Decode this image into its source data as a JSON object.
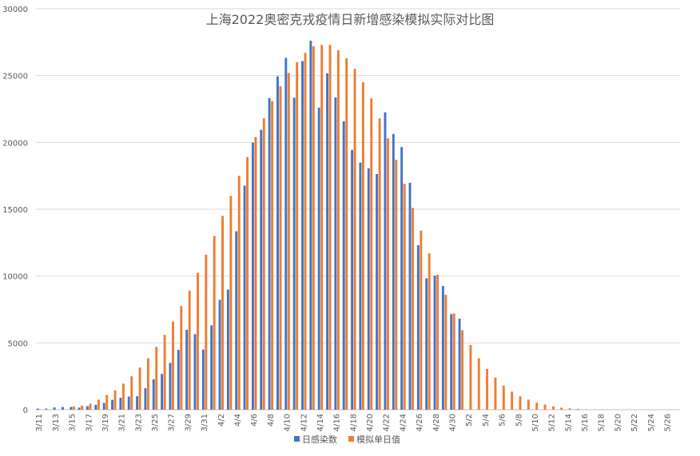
{
  "chart_data": {
    "type": "bar",
    "title": "上海2022奥密克戎疫情日新增感染模拟实际对比图",
    "xlabel": "",
    "ylabel": "",
    "ylim": [
      0,
      30000
    ],
    "yticks": [
      0,
      5000,
      10000,
      15000,
      20000,
      25000,
      30000
    ],
    "grid": true,
    "legend_position": "bottom",
    "categories": [
      "3/11",
      "3/12",
      "3/13",
      "3/14",
      "3/15",
      "3/16",
      "3/17",
      "3/18",
      "3/19",
      "3/20",
      "3/21",
      "3/22",
      "3/23",
      "3/24",
      "3/25",
      "3/26",
      "3/27",
      "3/28",
      "3/29",
      "3/30",
      "3/31",
      "4/1",
      "4/2",
      "4/3",
      "4/4",
      "4/5",
      "4/6",
      "4/7",
      "4/8",
      "4/9",
      "4/10",
      "4/11",
      "4/12",
      "4/13",
      "4/14",
      "4/15",
      "4/16",
      "4/17",
      "4/18",
      "4/19",
      "4/20",
      "4/21",
      "4/22",
      "4/23",
      "4/24",
      "4/25",
      "4/26",
      "4/27",
      "4/28",
      "4/29",
      "4/30",
      "5/1",
      "5/2",
      "5/3",
      "5/4",
      "5/5",
      "5/6",
      "5/7",
      "5/8",
      "5/9",
      "5/10",
      "5/11",
      "5/12",
      "5/13",
      "5/14",
      "5/15",
      "5/16",
      "5/17",
      "5/18",
      "5/19",
      "5/20",
      "5/21",
      "5/22",
      "5/23",
      "5/24",
      "5/25",
      "5/26",
      "5/27"
    ],
    "tick_labels": [
      "3/11",
      "3/13",
      "3/15",
      "3/17",
      "3/19",
      "3/21",
      "3/23",
      "3/25",
      "3/27",
      "3/29",
      "3/31",
      "4/2",
      "4/4",
      "4/6",
      "4/8",
      "4/10",
      "4/12",
      "4/14",
      "4/16",
      "4/18",
      "4/20",
      "4/22",
      "4/24",
      "4/26",
      "4/28",
      "4/30",
      "5/2",
      "5/4",
      "5/6",
      "5/8",
      "5/10",
      "5/12",
      "5/14",
      "5/16",
      "5/18",
      "5/20",
      "5/22",
      "5/24",
      "5/26"
    ],
    "series": [
      {
        "name": "日感染数",
        "color": "#4472c4",
        "values": [
          76,
          83,
          169,
          202,
          202,
          158,
          260,
          367,
          509,
          734,
          896,
          983,
          1006,
          1609,
          2269,
          2678,
          3500,
          4477,
          5982,
          5653,
          4502,
          6311,
          8226,
          8981,
          13354,
          16766,
          19982,
          20942,
          23317,
          24943,
          26330,
          23342,
          26087,
          27605,
          22609,
          25173,
          23370,
          21582,
          19442,
          18495,
          18064,
          17629,
          22251,
          20634,
          19657,
          16983,
          12309,
          9833,
          10026,
          9256,
          7150,
          6811,
          null,
          null,
          null,
          null,
          null,
          null,
          null,
          null,
          null,
          null,
          null,
          null,
          null,
          null,
          null,
          null,
          null,
          null,
          null,
          null,
          null,
          null,
          null,
          null,
          null,
          null
        ]
      },
      {
        "name": "模拟单日值",
        "color": "#ed7d31",
        "values": [
          0,
          0,
          0,
          0,
          250,
          300,
          450,
          750,
          1100,
          1450,
          1950,
          2500,
          3150,
          3850,
          4700,
          5600,
          6600,
          7750,
          8900,
          10250,
          11600,
          13000,
          14500,
          16000,
          17500,
          18900,
          20400,
          21800,
          23100,
          24200,
          25200,
          26000,
          26700,
          27200,
          27300,
          27300,
          26900,
          26300,
          25500,
          24500,
          23300,
          21800,
          20300,
          18700,
          16900,
          15100,
          13400,
          11700,
          10100,
          8600,
          7200,
          5950,
          4850,
          3850,
          3050,
          2400,
          1800,
          1350,
          1000,
          750,
          520,
          380,
          250,
          150,
          100,
          60,
          30,
          20,
          10,
          5,
          0,
          0,
          0,
          0,
          0,
          0,
          0,
          0
        ]
      }
    ]
  }
}
